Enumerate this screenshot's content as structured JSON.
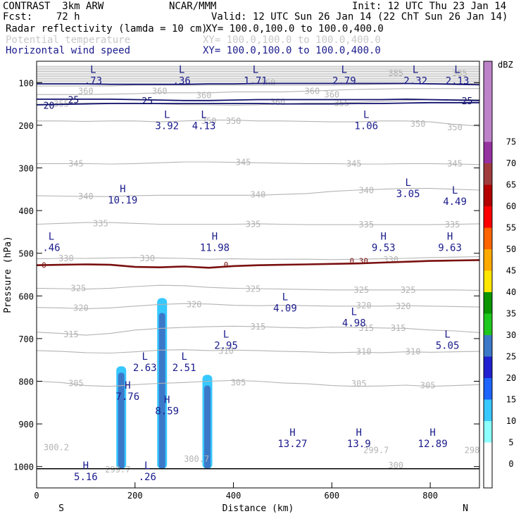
{
  "header": {
    "line1_left": "CONTRAST  3km ARW",
    "line1_center": "NCAR/MMM",
    "line1_right": "Init: 12 UTC Thu 23 Jan 14",
    "line2_left": "Fcst:    72 h",
    "line2_right": "Valid: 12 UTC Sun 26 Jan 14 (22 ChT Sun 26 Jan 14)",
    "field1_name": "Radar reflectivity (lamda = 10 cm)",
    "field1_xy": "XY= 100.0,100.0 to 100.0,400.0",
    "field2_name": "Potential temperature",
    "field2_xy": "XY= 100.0,100.0 to 100.0,400.0",
    "field3_name": "Horizontal wind speed",
    "field3_xy": "XY= 100.0,100.0 to 100.0,400.0"
  },
  "colors": {
    "theta": "#b4b4b4",
    "wind": "#10106e",
    "freezing": "#7a1010",
    "hl_text": "#1a1a8c",
    "axis": "#000000"
  },
  "chart_data": {
    "type": "cross-section",
    "xlabel": "Distance (km)",
    "ylabel": "Pressure (hPa)",
    "x_range": [
      0,
      900
    ],
    "y_range": [
      1050,
      50
    ],
    "x_ticks": [
      0,
      200,
      400,
      600,
      800
    ],
    "y_ticks": [
      100,
      200,
      300,
      400,
      500,
      600,
      700,
      800,
      900,
      1000
    ],
    "x_end_labels": {
      "left": "S",
      "right": "N"
    },
    "colorbar": {
      "unit": "dBZ",
      "levels": [
        0,
        5,
        10,
        15,
        20,
        25,
        30,
        35,
        40,
        45,
        50,
        55,
        60,
        65,
        70,
        75
      ],
      "colors": [
        "#ffffff",
        "#8cffff",
        "#37c8ff",
        "#1e64ff",
        "#2020d0",
        "#3c78c8",
        "#1ec81e",
        "#0a9600",
        "#ffe600",
        "#ffaa00",
        "#ff6400",
        "#ff0000",
        "#b40000",
        "#a03c3c",
        "#9632a0",
        "#be82c8"
      ]
    },
    "theta_contours": [
      {
        "value": 305,
        "y": [
          800,
          803,
          810,
          812,
          808,
          805,
          803,
          800,
          798,
          800,
          804,
          806,
          810,
          812,
          811,
          809,
          812,
          810,
          808
        ]
      },
      {
        "value": 310,
        "y": [
          728,
          730,
          733,
          734,
          731,
          727,
          726,
          728,
          727,
          728,
          730,
          731,
          733,
          732,
          733,
          731,
          732,
          731,
          730
        ]
      },
      {
        "value": 315,
        "y": [
          685,
          688,
          692,
          688,
          680,
          676,
          674,
          672,
          671,
          672,
          674,
          675,
          673,
          674,
          675,
          676,
          680,
          682,
          686
        ]
      },
      {
        "value": 320,
        "y": [
          627,
          628,
          630,
          628,
          624,
          620,
          618,
          619,
          622,
          623,
          622,
          623,
          624,
          624,
          624,
          623,
          624,
          625,
          626
        ]
      },
      {
        "value": 325,
        "y": [
          582,
          583,
          584,
          582,
          578,
          575,
          576,
          580,
          582,
          583,
          584,
          585,
          586,
          586,
          586,
          586,
          586,
          586,
          587
        ]
      },
      {
        "value": 330,
        "y": [
          513,
          512,
          512,
          511,
          510,
          511,
          512,
          514,
          513,
          514,
          514,
          514,
          515,
          514,
          513,
          512,
          510,
          509,
          508
        ]
      },
      {
        "value": 335,
        "y": [
          432,
          430,
          428,
          428,
          430,
          432,
          432,
          432,
          432,
          431,
          432,
          433,
          433,
          433,
          433,
          433,
          433,
          432,
          431
        ]
      },
      {
        "value": 340,
        "y": [
          365,
          366,
          367,
          367,
          365,
          364,
          364,
          364,
          364,
          364,
          362,
          360,
          355,
          352,
          350,
          348,
          348,
          350,
          352
        ]
      },
      {
        "value": 345,
        "y": [
          290,
          290,
          290,
          291,
          290,
          288,
          286,
          286,
          287,
          288,
          289,
          290,
          290,
          291,
          291,
          290,
          290,
          291,
          292
        ]
      },
      {
        "value": 350,
        "y": [
          190,
          190,
          191,
          190,
          190,
          192,
          190,
          188,
          188,
          190,
          190,
          191,
          192,
          192,
          190,
          190,
          192,
          198,
          202
        ]
      },
      {
        "value": 355,
        "y": [
          152,
          150,
          148,
          148,
          148,
          150,
          152,
          152,
          153,
          152,
          150,
          148,
          148,
          146,
          144,
          142,
          140,
          140,
          140
        ]
      },
      {
        "value": 360,
        "y": [
          128,
          128,
          128,
          127,
          126,
          124,
          124,
          124,
          122,
          122,
          122,
          120,
          118,
          116,
          115,
          114,
          114,
          114,
          114
        ]
      },
      {
        "value": 365,
        "y": [
          108,
          108,
          108,
          108,
          106,
          106,
          106,
          106,
          106,
          106,
          106,
          106,
          106,
          105,
          104,
          103,
          102,
          102,
          102
        ]
      }
    ],
    "theta_labels": [
      {
        "text": "350",
        "x": 350,
        "p": 190
      },
      {
        "text": "350",
        "x": 400,
        "p": 190
      },
      {
        "text": "350",
        "x": 775,
        "p": 197
      },
      {
        "text": "350",
        "x": 850,
        "p": 205
      },
      {
        "text": "345",
        "x": 80,
        "p": 290
      },
      {
        "text": "345",
        "x": 420,
        "p": 287
      },
      {
        "text": "345",
        "x": 645,
        "p": 290
      },
      {
        "text": "345",
        "x": 850,
        "p": 290
      },
      {
        "text": "340",
        "x": 100,
        "p": 367
      },
      {
        "text": "340",
        "x": 450,
        "p": 363
      },
      {
        "text": "340",
        "x": 670,
        "p": 353
      },
      {
        "text": "335",
        "x": 130,
        "p": 430
      },
      {
        "text": "335",
        "x": 440,
        "p": 432
      },
      {
        "text": "335",
        "x": 670,
        "p": 433
      },
      {
        "text": "335",
        "x": 845,
        "p": 433
      },
      {
        "text": "330",
        "x": 60,
        "p": 512
      },
      {
        "text": "330",
        "x": 225,
        "p": 512
      },
      {
        "text": "330",
        "x": 720,
        "p": 515
      },
      {
        "text": "325",
        "x": 85,
        "p": 582
      },
      {
        "text": "325",
        "x": 440,
        "p": 584
      },
      {
        "text": "325",
        "x": 660,
        "p": 586
      },
      {
        "text": "325",
        "x": 755,
        "p": 586
      },
      {
        "text": "320",
        "x": 90,
        "p": 628
      },
      {
        "text": "320",
        "x": 320,
        "p": 620
      },
      {
        "text": "320",
        "x": 665,
        "p": 623
      },
      {
        "text": "320",
        "x": 745,
        "p": 624
      },
      {
        "text": "315",
        "x": 70,
        "p": 690
      },
      {
        "text": "315",
        "x": 450,
        "p": 672
      },
      {
        "text": "315",
        "x": 670,
        "p": 675
      },
      {
        "text": "315",
        "x": 735,
        "p": 675
      },
      {
        "text": "310",
        "x": 385,
        "p": 729
      },
      {
        "text": "310",
        "x": 665,
        "p": 731
      },
      {
        "text": "310",
        "x": 765,
        "p": 731
      },
      {
        "text": "305",
        "x": 80,
        "p": 805
      },
      {
        "text": "305",
        "x": 410,
        "p": 803
      },
      {
        "text": "305",
        "x": 655,
        "p": 806
      },
      {
        "text": "305",
        "x": 795,
        "p": 810
      },
      {
        "text": "385",
        "x": 730,
        "p": 78
      },
      {
        "text": "385",
        "x": 860,
        "p": 78
      },
      {
        "text": "360",
        "x": 100,
        "p": 120
      },
      {
        "text": "360",
        "x": 250,
        "p": 120
      },
      {
        "text": "360",
        "x": 340,
        "p": 130
      },
      {
        "text": "360",
        "x": 470,
        "p": 100
      },
      {
        "text": "360",
        "x": 560,
        "p": 120
      },
      {
        "text": "360",
        "x": 600,
        "p": 128
      },
      {
        "text": "360",
        "x": 490,
        "p": 146
      },
      {
        "text": "355",
        "x": 50,
        "p": 150
      },
      {
        "text": "355",
        "x": 620,
        "p": 148
      },
      {
        "text": "300.2",
        "x": 40,
        "p": 955
      },
      {
        "text": "299.7",
        "x": 165,
        "p": 1007
      },
      {
        "text": "300.7",
        "x": 325,
        "p": 982
      },
      {
        "text": "299.7",
        "x": 690,
        "p": 962
      },
      {
        "text": "300",
        "x": 730,
        "p": 997
      },
      {
        "text": "298",
        "x": 885,
        "p": 962
      }
    ],
    "wind_contours": [
      {
        "value": 20,
        "y": [
          152,
          151,
          150,
          149,
          149,
          149,
          149,
          149,
          149,
          149,
          150,
          150,
          150,
          149,
          149,
          148,
          147,
          147,
          147
        ]
      },
      {
        "value": 25,
        "y": [
          139,
          139,
          139,
          139,
          140,
          141,
          142,
          142,
          141,
          140,
          140,
          140,
          140,
          140,
          140,
          139,
          140,
          141,
          142
        ]
      },
      {
        "value": 30,
        "y": [
          103,
          103,
          103,
          104,
          104,
          104,
          104,
          103,
          103,
          102,
          102,
          102,
          102,
          102,
          102,
          102,
          103,
          104,
          105
        ]
      }
    ],
    "wind_labels": [
      {
        "text": "20",
        "x": 25,
        "p": 153
      },
      {
        "text": "25",
        "x": 75,
        "p": 140
      },
      {
        "text": "25",
        "x": 225,
        "p": 142
      },
      {
        "text": "25",
        "x": 875,
        "p": 142
      }
    ],
    "freezing_level": {
      "value": 0,
      "y": [
        528,
        527,
        526,
        527,
        532,
        533,
        531,
        534,
        530,
        528,
        527,
        526,
        525,
        524,
        522,
        520,
        518,
        517,
        516
      ]
    },
    "freezing_labels": [
      {
        "text": "0",
        "x": 15,
        "p": 528
      },
      {
        "text": "0",
        "x": 385,
        "p": 527
      },
      {
        "text": "0.30",
        "x": 655,
        "p": 518
      }
    ],
    "hl_marks": [
      {
        "mark": "L",
        "value": ".73",
        "x": 115,
        "p": 82
      },
      {
        "mark": "L",
        "value": ".36",
        "x": 295,
        "p": 82
      },
      {
        "mark": "L",
        "value": "1.71",
        "x": 445,
        "p": 82
      },
      {
        "mark": "L",
        "value": "2.79",
        "x": 625,
        "p": 82
      },
      {
        "mark": "L",
        "value": "2.32",
        "x": 770,
        "p": 82
      },
      {
        "mark": "L",
        "value": "2.13",
        "x": 855,
        "p": 82
      },
      {
        "mark": "L",
        "value": "3.92",
        "x": 265,
        "p": 188
      },
      {
        "mark": "L",
        "value": "4.13",
        "x": 340,
        "p": 188
      },
      {
        "mark": "L",
        "value": "1.06",
        "x": 670,
        "p": 188
      },
      {
        "mark": "H",
        "value": "10.19",
        "x": 175,
        "p": 362
      },
      {
        "mark": "L",
        "value": "3.05",
        "x": 755,
        "p": 347
      },
      {
        "mark": "L",
        "value": "4.49",
        "x": 850,
        "p": 365
      },
      {
        "mark": "L",
        "value": ".46",
        "x": 30,
        "p": 473
      },
      {
        "mark": "H",
        "value": "11.98",
        "x": 362,
        "p": 473
      },
      {
        "mark": "H",
        "value": "9.53",
        "x": 705,
        "p": 473
      },
      {
        "mark": "H",
        "value": "9.63",
        "x": 840,
        "p": 473
      },
      {
        "mark": "L",
        "value": "4.09",
        "x": 505,
        "p": 615
      },
      {
        "mark": "L",
        "value": "4.98",
        "x": 645,
        "p": 650
      },
      {
        "mark": "L",
        "value": "2.95",
        "x": 385,
        "p": 703
      },
      {
        "mark": "L",
        "value": "5.05",
        "x": 835,
        "p": 703
      },
      {
        "mark": "L",
        "value": "2.63",
        "x": 220,
        "p": 755
      },
      {
        "mark": "L",
        "value": "2.51",
        "x": 300,
        "p": 755
      },
      {
        "mark": "H",
        "value": "7.76",
        "x": 185,
        "p": 822
      },
      {
        "mark": "H",
        "value": "8.59",
        "x": 265,
        "p": 856
      },
      {
        "mark": "H",
        "value": "13.27",
        "x": 520,
        "p": 933
      },
      {
        "mark": "H",
        "value": "13.9",
        "x": 655,
        "p": 933
      },
      {
        "mark": "H",
        "value": "12.89",
        "x": 805,
        "p": 933
      },
      {
        "mark": "H",
        "value": "5.16",
        "x": 100,
        "p": 1010
      },
      {
        "mark": "L",
        "value": ".26",
        "x": 225,
        "p": 1010
      }
    ],
    "reflectivity_columns": [
      {
        "x": 172,
        "top": 765,
        "bottom": 1005,
        "core_top": 780,
        "core_dbz": 25,
        "halo_dbz": 10
      },
      {
        "x": 255,
        "top": 605,
        "bottom": 1005,
        "core_top": 640,
        "core_dbz": 25,
        "halo_dbz": 10
      },
      {
        "x": 347,
        "top": 785,
        "bottom": 1005,
        "core_top": 810,
        "core_dbz": 25,
        "halo_dbz": 10
      }
    ],
    "terrain_p": 1005
  }
}
